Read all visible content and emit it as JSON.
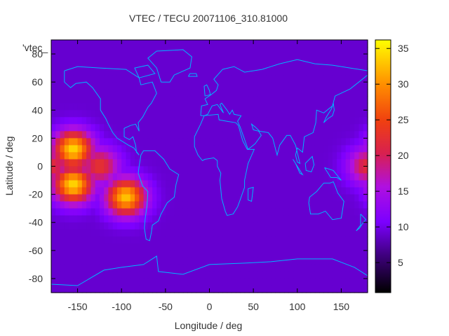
{
  "chart_data": {
    "type": "heatmap",
    "title": "VTEC / TECU 20071106_310.81000",
    "xlabel": "Longitude / deg",
    "ylabel": "Latitude / deg",
    "legend_label": "'vtec_",
    "xlim": [
      -180,
      180
    ],
    "ylim": [
      -90,
      90
    ],
    "x_ticks": [
      -150,
      -100,
      -50,
      0,
      50,
      100,
      150
    ],
    "y_ticks": [
      -80,
      -60,
      -40,
      -20,
      0,
      20,
      40,
      60,
      80
    ],
    "colorbar": {
      "min": 0.8,
      "max": 36.2,
      "ticks": [
        5,
        10,
        15,
        20,
        25,
        30,
        35
      ]
    },
    "units": "TECU",
    "hotspots": [
      {
        "lon": -155,
        "lat": 12,
        "value": 34
      },
      {
        "lon": -155,
        "lat": -13,
        "value": 34
      },
      {
        "lon": -95,
        "lat": -22,
        "value": 33
      },
      {
        "lon": -125,
        "lat": 0,
        "value": 23
      },
      {
        "lon": 180,
        "lat": 0,
        "value": 22
      }
    ],
    "background_value": 9,
    "overlay": "coastlines"
  }
}
